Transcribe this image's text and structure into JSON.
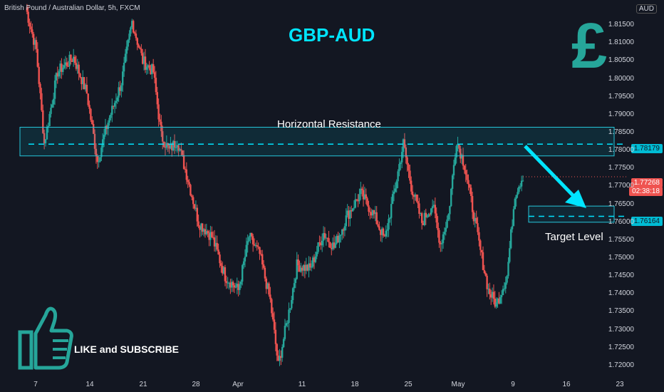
{
  "header": {
    "symbol_title": "British Pound / Australian Dollar, 5h, FXCM",
    "headline": "GBP-AUD",
    "currency_badge": "AUD",
    "pound_glyph": "£"
  },
  "annotations": {
    "resistance_label": "Horizontal Resistance",
    "target_label": "Target Level",
    "cta": "LIKE and SUBSCRIBE"
  },
  "price_tags": {
    "resistance_price": "1.78179",
    "current_price": "1.77268",
    "countdown": "02:38:18",
    "target_price": "1.76164"
  },
  "colors": {
    "up": "#26a69a",
    "down": "#ef5350",
    "accent": "#00e5ff",
    "background": "#131722"
  },
  "chart_data": {
    "type": "candlestick",
    "title": "GBP-AUD",
    "ylim": [
      1.717,
      1.822
    ],
    "y_ticks": [
      "1.81500",
      "1.81000",
      "1.80500",
      "1.80000",
      "1.79500",
      "1.79000",
      "1.78500",
      "1.78000",
      "1.77500",
      "1.77000",
      "1.76500",
      "1.76000",
      "1.75500",
      "1.75000",
      "1.74500",
      "1.74000",
      "1.73500",
      "1.73000",
      "1.72500",
      "1.72000"
    ],
    "x_ticks": [
      "7",
      "14",
      "21",
      "28",
      "Apr",
      "11",
      "18",
      "25",
      "May",
      "9",
      "16",
      "23"
    ],
    "resistance_zone": [
      1.7785,
      1.7865
    ],
    "resistance_level": 1.78179,
    "target_zone": [
      1.76,
      1.7645
    ],
    "target_level": 1.76164,
    "last_price": 1.77268,
    "waypoints": [
      [
        0,
        1.82
      ],
      [
        8,
        1.808
      ],
      [
        14,
        1.782
      ],
      [
        24,
        1.802
      ],
      [
        36,
        1.806
      ],
      [
        46,
        1.796
      ],
      [
        54,
        1.777
      ],
      [
        62,
        1.788
      ],
      [
        72,
        1.799
      ],
      [
        80,
        1.816
      ],
      [
        88,
        1.805
      ],
      [
        96,
        1.802
      ],
      [
        102,
        1.784
      ],
      [
        108,
        1.78
      ],
      [
        114,
        1.783
      ],
      [
        122,
        1.772
      ],
      [
        130,
        1.76
      ],
      [
        140,
        1.756
      ],
      [
        150,
        1.745
      ],
      [
        160,
        1.741
      ],
      [
        168,
        1.756
      ],
      [
        176,
        1.751
      ],
      [
        184,
        1.738
      ],
      [
        190,
        1.72
      ],
      [
        198,
        1.735
      ],
      [
        204,
        1.748
      ],
      [
        214,
        1.747
      ],
      [
        224,
        1.757
      ],
      [
        232,
        1.753
      ],
      [
        242,
        1.762
      ],
      [
        252,
        1.768
      ],
      [
        262,
        1.762
      ],
      [
        270,
        1.755
      ],
      [
        278,
        1.77
      ],
      [
        284,
        1.782
      ],
      [
        290,
        1.77
      ],
      [
        298,
        1.76
      ],
      [
        306,
        1.765
      ],
      [
        312,
        1.754
      ],
      [
        318,
        1.762
      ],
      [
        324,
        1.783
      ],
      [
        330,
        1.776
      ],
      [
        336,
        1.764
      ],
      [
        342,
        1.752
      ],
      [
        348,
        1.741
      ],
      [
        354,
        1.737
      ],
      [
        362,
        1.745
      ],
      [
        368,
        1.768
      ],
      [
        374,
        1.773
      ]
    ]
  }
}
